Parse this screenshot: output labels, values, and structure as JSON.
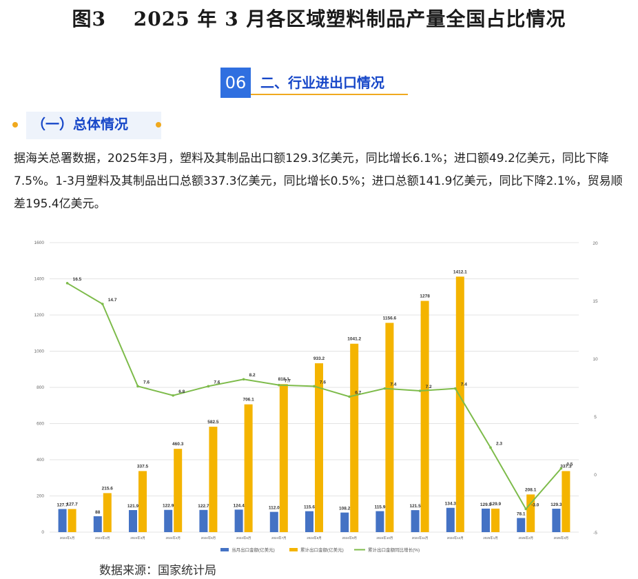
{
  "header": {
    "figure_title": "图3　 2025 年 3 月各区域塑料制品产量全国占比情况"
  },
  "section": {
    "number": "06",
    "title": "二、行业进出口情况"
  },
  "subsection": {
    "title": "（一）总体情况"
  },
  "body_text": "据海关总署数据，2025年3月，塑料及其制品出口额129.3亿美元，同比增长6.1%；进口额49.2亿美元，同比下降7.5%。1-3月塑料及其制品出口总额337.3亿美元，同比增长0.5%；进口总额141.9亿美元，同比下降2.1%，贸易顺差195.4亿美元。",
  "source": "数据来源：国家统计局",
  "colors": {
    "monthly": "#4472c4",
    "cumulative": "#f4b400",
    "growth": "#7dbb4a",
    "accent_blue": "#2f6fe0",
    "accent_orange": "#f0a91e"
  },
  "chart_data": {
    "type": "bar",
    "categories": [
      "2024年1月",
      "2024年2月",
      "2024年3月",
      "2024年4月",
      "2024年5月",
      "2024年6月",
      "2024年7月",
      "2024年8月",
      "2024年9月",
      "2024年10月",
      "2024年11月",
      "2024年12月",
      "2025年1月",
      "2025年2月",
      "2025年3月"
    ],
    "series": [
      {
        "name": "当月出口金额(亿美元)",
        "type": "bar",
        "axis": "left",
        "values": [
          127.7,
          88,
          121.9,
          122.9,
          122.7,
          124.4,
          112.0,
          115.6,
          108.2,
          115.9,
          121.5,
          134.3,
          129.9,
          78.1,
          129.3
        ],
        "labels": [
          "127.7",
          "88",
          "121.9",
          "122.9",
          "122.7",
          "124.4",
          "112.0",
          "115.6",
          "108.2",
          "115.9",
          "121.5",
          "134.3",
          "129.9",
          "78.1",
          "129.3"
        ]
      },
      {
        "name": "累计出口金额(亿美元)",
        "type": "bar",
        "axis": "left",
        "values": [
          127.7,
          215.6,
          337.5,
          460.3,
          582.5,
          706.1,
          818.1,
          933.2,
          1041.2,
          1156.6,
          1278,
          1412.1,
          129.9,
          208.1,
          337.3
        ],
        "labels": [
          "127.7",
          "215.6",
          "337.5",
          "460.3",
          "582.5",
          "706.1",
          "818.1",
          "933.2",
          "1041.2",
          "1156.6",
          "1278",
          "1412.1",
          "129.9",
          "208.1",
          "337.3"
        ]
      },
      {
        "name": "累计出口金额同比增长(%)",
        "type": "line",
        "axis": "right",
        "values": [
          16.5,
          14.7,
          7.6,
          6.8,
          7.6,
          8.2,
          7.7,
          7.6,
          6.7,
          7.4,
          7.2,
          7.4,
          2.3,
          -3.0,
          0.5
        ],
        "labels": [
          "16.5",
          "14.7",
          "7.6",
          "6.8",
          "7.6",
          "8.2",
          "7.7",
          "7.6",
          "6.7",
          "7.4",
          "7.2",
          "7.4",
          "2.3",
          "-3.0",
          "0.5"
        ]
      }
    ],
    "ylim_left": [
      0,
      1600
    ],
    "yticks_left": [
      "0",
      "200",
      "400",
      "600",
      "800",
      "1000",
      "1200",
      "1400",
      "1600"
    ],
    "ylim_right": [
      -5,
      20
    ],
    "yticks_right": [
      "-5",
      "0",
      "5",
      "10",
      "15",
      "20"
    ],
    "grid": true,
    "legend_position": "bottom"
  }
}
